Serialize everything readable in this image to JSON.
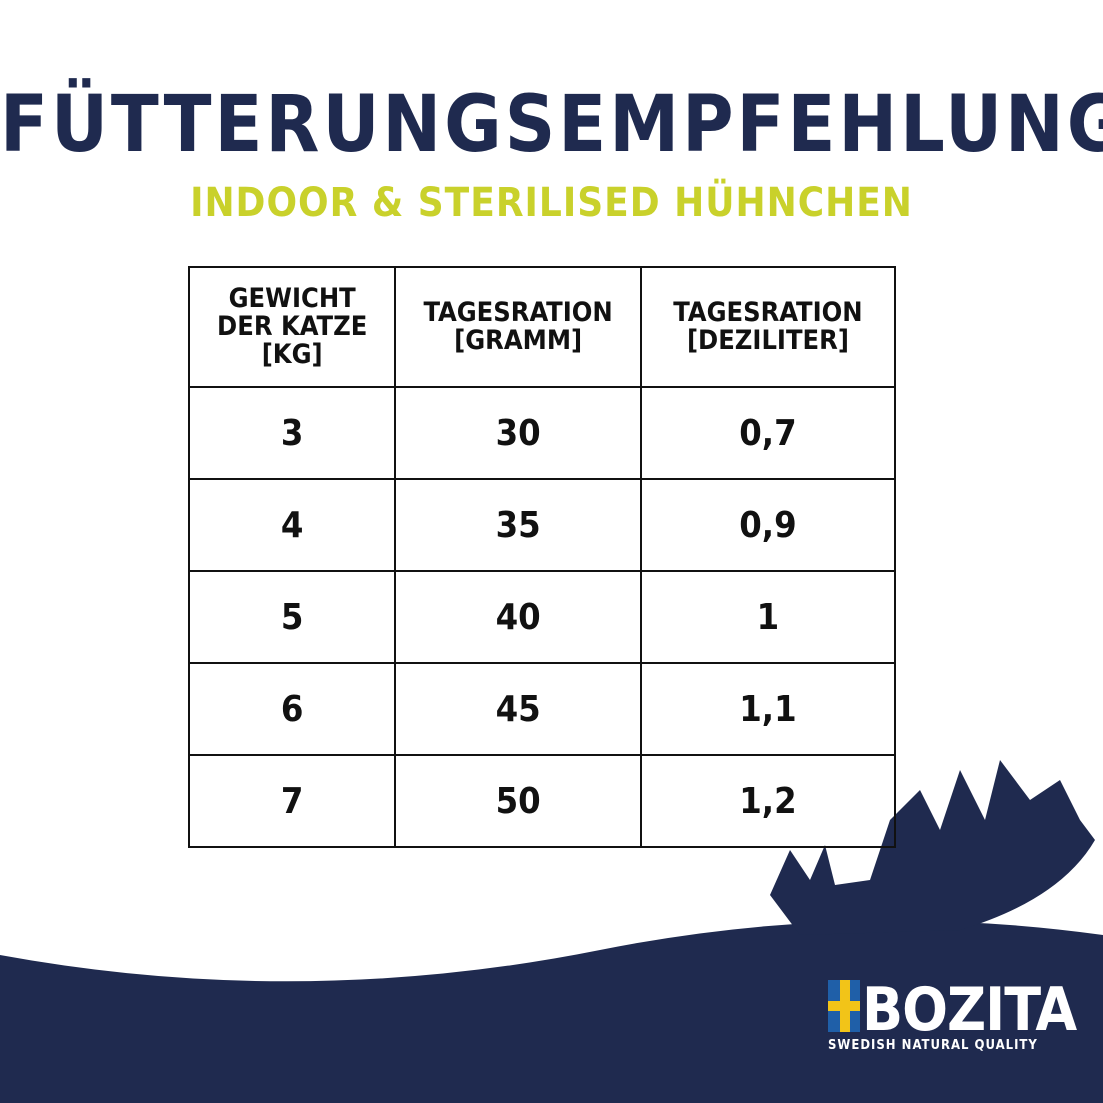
{
  "header": {
    "title": "FÜTTERUNGSEMPFEHLUNG",
    "subtitle": "INDOOR & STERILISED  HÜHNCHEN"
  },
  "table": {
    "columns": [
      "GEWICHT DER KATZE [KG]",
      "TAGESRATION [GRAMM]",
      "TAGESRATION [DEZILITER]"
    ],
    "rows": [
      [
        "3",
        "30",
        "0,7"
      ],
      [
        "4",
        "35",
        "0,9"
      ],
      [
        "5",
        "40",
        "1"
      ],
      [
        "6",
        "45",
        "1,1"
      ],
      [
        "7",
        "50",
        "1,2"
      ]
    ]
  },
  "logo": {
    "brand": "BOZITA",
    "tagline": "SWEDISH NATURAL QUALITY"
  }
}
